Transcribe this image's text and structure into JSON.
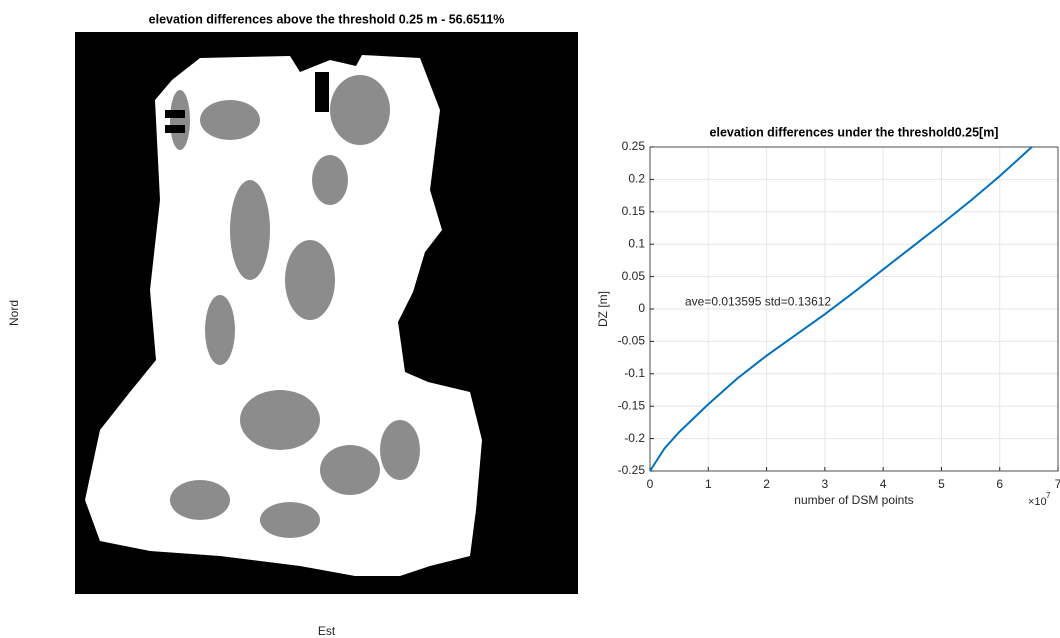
{
  "chart_data": [
    {
      "type": "image",
      "title": "elevation differences above the threshold 0.25 m - 56.6511%",
      "xlabel": "Est",
      "ylabel": "Nord"
    },
    {
      "type": "line",
      "title": "elevation differences under the threshold0.25[m]",
      "xlabel": "number of DSM points",
      "ylabel": "DZ [m]",
      "x_multiplier_base": "×10",
      "x_multiplier_exponent": "7",
      "annotation": "ave=0.013595  std=0.13612",
      "xlim": [
        0,
        7
      ],
      "xticks": [
        0,
        1,
        2,
        3,
        4,
        5,
        6,
        7
      ],
      "ylim": [
        -0.25,
        0.25
      ],
      "yticks": [
        -0.25,
        -0.2,
        -0.15,
        -0.1,
        -0.05,
        0,
        0.05,
        0.1,
        0.15,
        0.2,
        0.25
      ],
      "grid": true,
      "series": [
        {
          "color": "#0072bd",
          "x": [
            0,
            0.25,
            0.5,
            1,
            1.5,
            2,
            2.5,
            3,
            3.5,
            4,
            4.5,
            5,
            5.5,
            6,
            6.55
          ],
          "values": [
            -0.25,
            -0.215,
            -0.19,
            -0.147,
            -0.107,
            -0.072,
            -0.04,
            -0.008,
            0.026,
            0.061,
            0.096,
            0.131,
            0.167,
            0.205,
            0.25
          ]
        }
      ]
    }
  ]
}
